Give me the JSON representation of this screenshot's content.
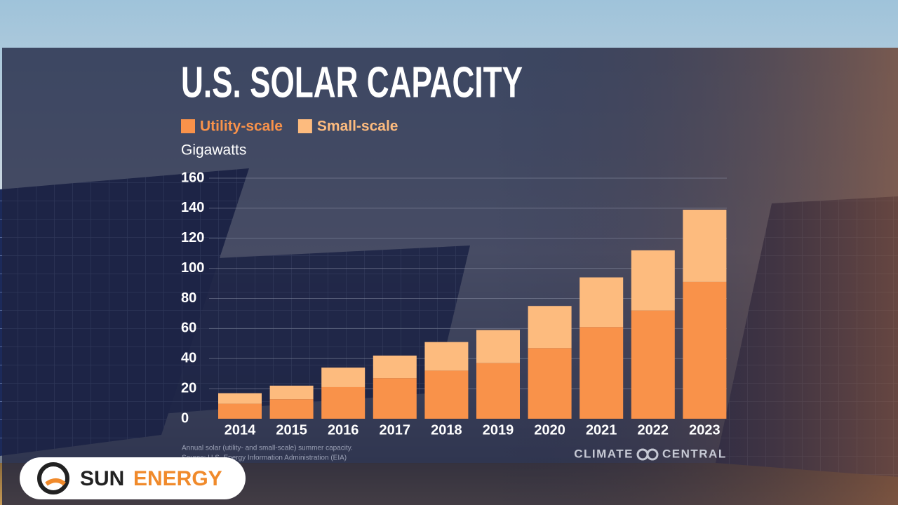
{
  "chart_data": {
    "type": "stacked-bar",
    "title": "U.S. SOLAR CAPACITY",
    "y_label": "Gigawatts",
    "categories": [
      "2014",
      "2015",
      "2016",
      "2017",
      "2018",
      "2019",
      "2020",
      "2021",
      "2022",
      "2023"
    ],
    "series": [
      {
        "name": "Utility-scale",
        "color": "#f9924a",
        "values": [
          10,
          13,
          21,
          27,
          32,
          37,
          47,
          61,
          72,
          91
        ]
      },
      {
        "name": "Small-scale",
        "color": "#fdbb7e",
        "values": [
          7,
          9,
          13,
          15,
          19,
          22,
          28,
          33,
          40,
          48
        ]
      }
    ],
    "ylim": [
      0,
      160
    ],
    "yticks": [
      0,
      20,
      40,
      60,
      80,
      100,
      120,
      140,
      160
    ],
    "grid": true,
    "notes": [
      "Annual solar (utility- and small-scale) summer capacity.",
      "Source: U.S. Energy Information Administration (EIA)"
    ],
    "credit": [
      "CLIMATE",
      "CENTRAL"
    ]
  },
  "logo": {
    "words": [
      "SUN",
      "ENERGY"
    ]
  }
}
